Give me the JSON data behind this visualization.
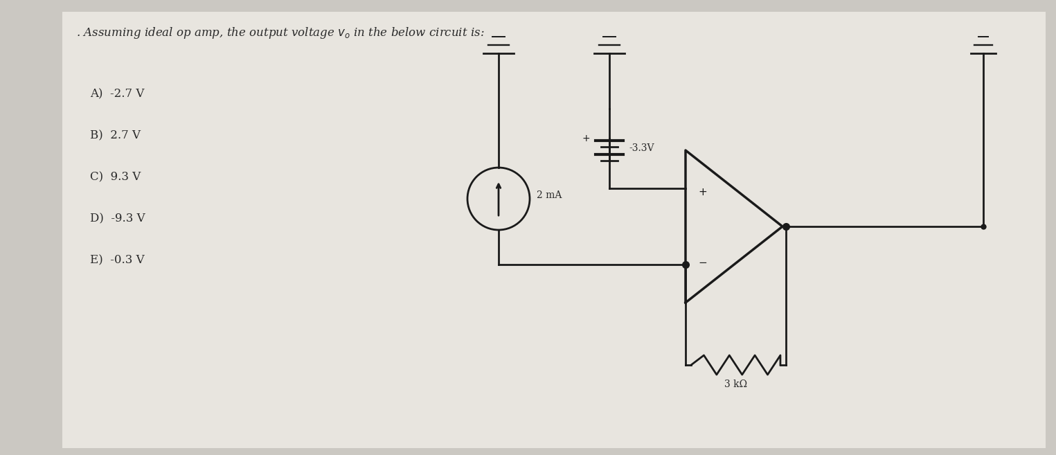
{
  "background_color": "#cbc8c2",
  "paper_color": "#e8e5df",
  "title_text": ". Assuming ideal op amp, the output voltage $v_o$ in the below circuit is:",
  "choices": [
    "A)  -2.7 V",
    "B)  2.7 V",
    "C)  9.3 V",
    "D)  -9.3 V",
    "E)  -0.3 V"
  ],
  "resistor_label": "3 kΩ",
  "current_label": "2 mA",
  "voltage_label": "-3.3V",
  "text_color": "#2a2a2a",
  "line_color": "#1a1a1a",
  "font_size_title": 12,
  "font_size_choices": 12,
  "font_size_labels": 10
}
